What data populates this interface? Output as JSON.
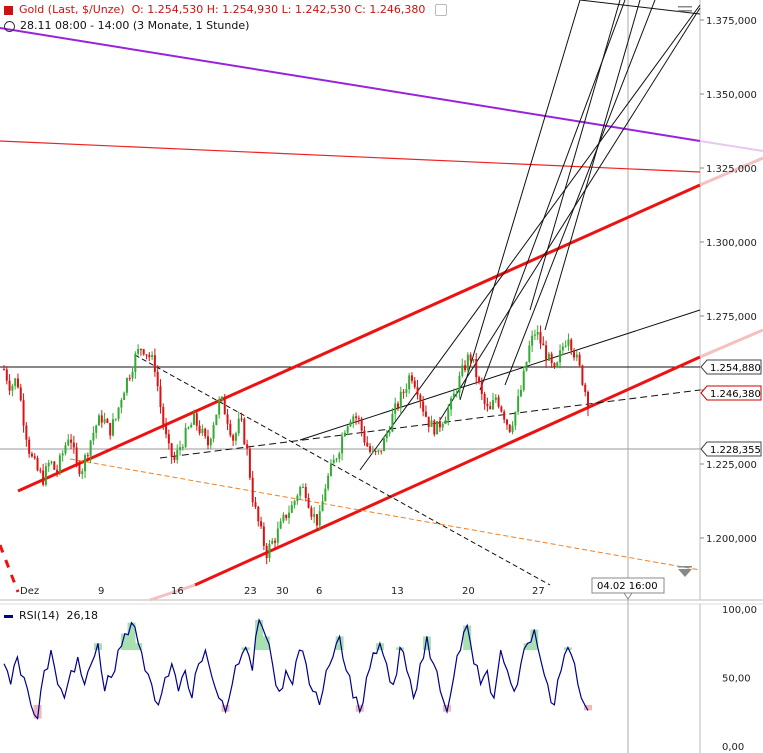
{
  "header": {
    "instrument": "Gold (Last, $/Unze)",
    "ohlc": "O: 1.254,530  H: 1.254,930  L: 1.242,530  C: 1.246,380",
    "range": "28.11 08:00 - 14:00 (3 Monate, 1 Stunde)"
  },
  "rsi_panel": {
    "label": "RSI(14)",
    "value": "26,18",
    "color": "#00008b"
  },
  "price_axis": {
    "ticks": [
      "1.375,000",
      "1.350,000",
      "1.325,000",
      "1.300,000",
      "1.275,000",
      "1.250,000",
      "1.225,000",
      "1.200,000"
    ],
    "tick_values": [
      1375,
      1350,
      1325,
      1300,
      1275,
      1250,
      1225,
      1200
    ],
    "tags": [
      {
        "text": "1.254,880",
        "value": 1254.88,
        "color": "#000000"
      },
      {
        "text": "1.246,380",
        "value": 1246.38,
        "color": "#cc0000"
      },
      {
        "text": "1.228,355",
        "value": 1228.355,
        "color": "#000000"
      }
    ]
  },
  "rsi_axis": {
    "ticks": [
      "100,00",
      "50,00",
      "0,00"
    ],
    "tick_values": [
      100,
      50,
      0
    ]
  },
  "x_axis": {
    "labels": [
      "Dez",
      "9",
      "16",
      "23",
      "30",
      "6",
      "13",
      "20",
      "27"
    ],
    "cursor_label": "04.02 16:00"
  },
  "chart_data": {
    "type": "candlestick",
    "title": "Gold (Last, $/Unze)",
    "ylim": [
      1178,
      1380
    ],
    "close_path": [
      1257,
      1251,
      1254,
      1240,
      1228,
      1223,
      1220,
      1226,
      1222,
      1229,
      1236,
      1224,
      1224,
      1232,
      1238,
      1241,
      1236,
      1240,
      1249,
      1255,
      1261,
      1265,
      1262,
      1258,
      1242,
      1230,
      1226,
      1232,
      1236,
      1240,
      1236,
      1231,
      1240,
      1247,
      1241,
      1233,
      1240,
      1230,
      1212,
      1203,
      1195,
      1199,
      1203,
      1208,
      1211,
      1217,
      1216,
      1208,
      1205,
      1218,
      1224,
      1230,
      1238,
      1242,
      1240,
      1233,
      1228,
      1228,
      1233,
      1240,
      1245,
      1250,
      1256,
      1251,
      1243,
      1238,
      1237,
      1241,
      1244,
      1251,
      1257,
      1262,
      1255,
      1246,
      1242,
      1248,
      1243,
      1237,
      1243,
      1252,
      1264,
      1270,
      1265,
      1260,
      1255,
      1264,
      1269,
      1262,
      1255,
      1246
    ],
    "rsi_path": [
      60,
      45,
      65,
      50,
      30,
      20,
      55,
      70,
      45,
      35,
      55,
      65,
      45,
      60,
      75,
      40,
      50,
      70,
      82,
      90,
      75,
      55,
      45,
      30,
      50,
      60,
      40,
      55,
      35,
      60,
      70,
      50,
      35,
      25,
      45,
      60,
      72,
      55,
      92,
      80,
      60,
      40,
      55,
      45,
      70,
      60,
      40,
      30,
      55,
      65,
      80,
      55,
      35,
      25,
      50,
      68,
      75,
      60,
      45,
      72,
      55,
      35,
      60,
      80,
      60,
      40,
      25,
      50,
      70,
      88,
      60,
      45,
      55,
      35,
      70,
      55,
      40,
      60,
      75,
      85,
      62,
      45,
      30,
      55,
      72,
      60,
      35,
      26
    ],
    "lines": [
      {
        "color": "#ee1111",
        "desc": "upper channel",
        "from": [
          0,
          1211
        ],
        "to": [
          1,
          1316
        ]
      },
      {
        "color": "#ee1111",
        "desc": "lower channel",
        "from": [
          0.26,
          1178
        ],
        "to": [
          1,
          1256
        ]
      },
      {
        "color": "#9922dd",
        "desc": "long downtrend",
        "from": [
          0,
          1380
        ],
        "to": [
          1,
          1332
        ]
      },
      {
        "color": "#ee2222",
        "desc": "resistance",
        "from": [
          0,
          1334
        ],
        "to": [
          1,
          1322
        ]
      }
    ],
    "horizontal_levels": [
      1254.88,
      1228.355
    ]
  }
}
